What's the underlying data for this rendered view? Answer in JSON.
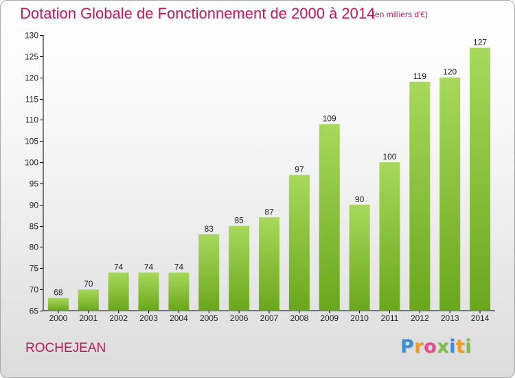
{
  "title": "Dotation Globale de Fonctionnement de 2000 à 2014",
  "unit_note": "(en milliers d'€)",
  "commune": "ROCHEJEAN",
  "logo": {
    "text": "Proxiti",
    "letter_colors": [
      "#3a8fd6",
      "#f39c1f",
      "#e84c8b",
      "#7bc043",
      "#3a8fd6",
      "#f39c1f",
      "#7bc043"
    ]
  },
  "colors": {
    "title": "#c2185b",
    "bar_top": "#a8d85c",
    "bar_bottom": "#6aa71c",
    "axis": "#000000"
  },
  "chart_data": {
    "type": "bar",
    "title": "Dotation Globale de Fonctionnement de 2000 à 2014",
    "categories": [
      "2000",
      "2001",
      "2002",
      "2003",
      "2004",
      "2005",
      "2006",
      "2007",
      "2008",
      "2009",
      "2010",
      "2011",
      "2012",
      "2013",
      "2014"
    ],
    "values": [
      68,
      70,
      74,
      74,
      74,
      83,
      85,
      87,
      97,
      109,
      90,
      100,
      119,
      120,
      127
    ],
    "ylim": [
      65,
      130
    ],
    "yticks": [
      65,
      70,
      75,
      80,
      85,
      90,
      95,
      100,
      105,
      110,
      115,
      120,
      125,
      130
    ],
    "xlabel": "",
    "ylabel": "",
    "grid": false,
    "legend": "none"
  }
}
